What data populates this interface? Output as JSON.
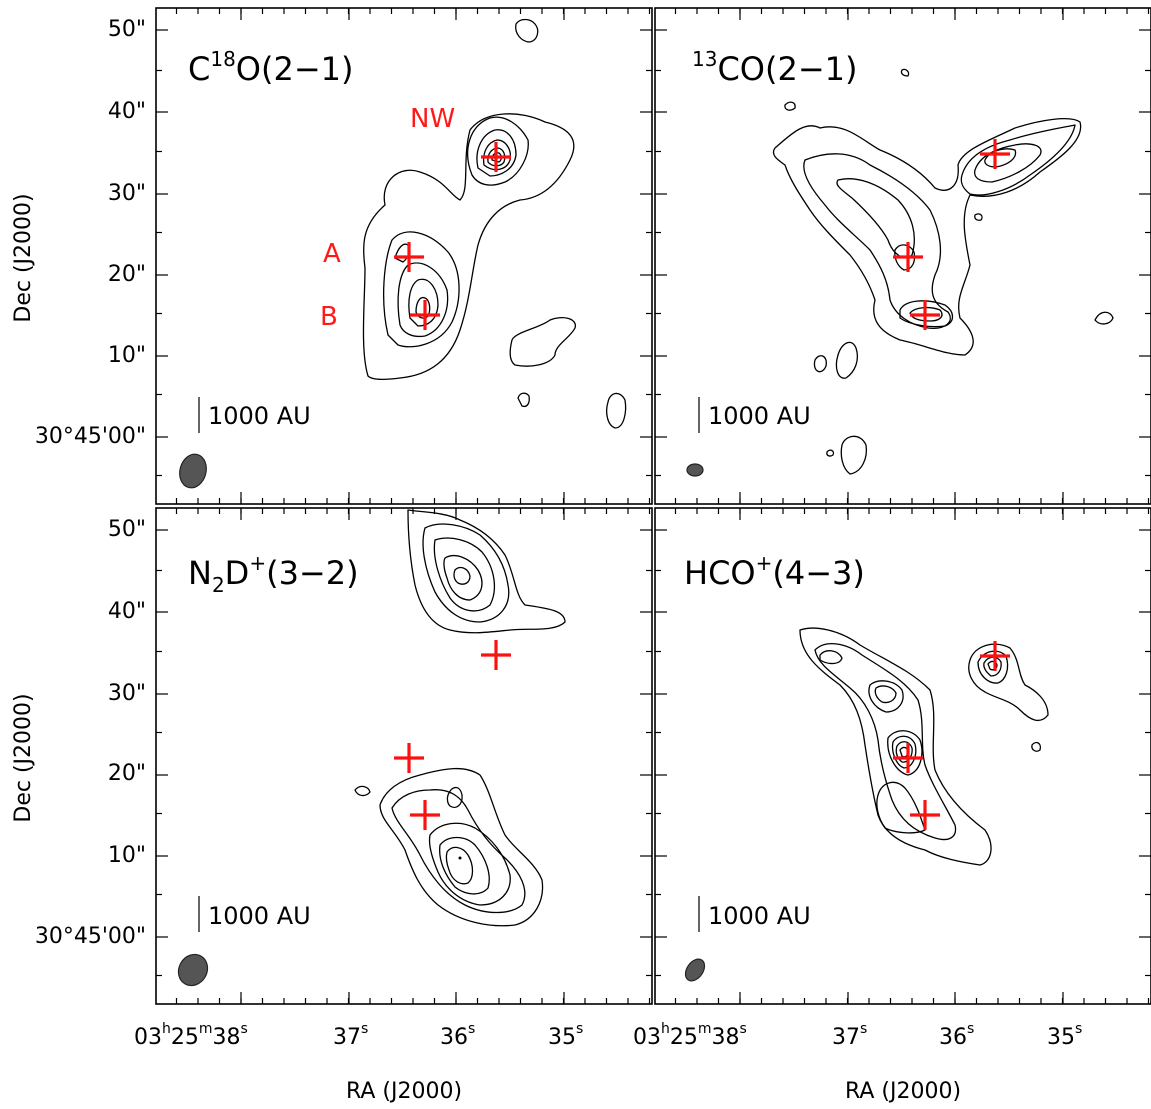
{
  "figure": {
    "x_axis_label": "RA (J2000)",
    "y_axis_label": "Dec (J2000)",
    "scale_bar": "1000 AU",
    "x_tick_labels": [
      "03",
      "h",
      "25",
      "m",
      "38",
      "s",
      "37",
      "s",
      "36",
      "s",
      "35",
      "s"
    ],
    "y_tick_labels": [
      "50\"",
      "40\"",
      "30\"",
      "20\"",
      "10\"",
      "30°45'00\""
    ],
    "colors": {
      "markers": "#ff1a1a",
      "contours": "#000000",
      "beam": "#555555"
    }
  },
  "chart_data": [
    {
      "type": "contour",
      "panel": "top-left",
      "title": {
        "base": "C",
        "sup": "18",
        "rest": "O(2−1)"
      },
      "source_labels": [
        "NW",
        "A",
        "B"
      ],
      "positions_dec_arcsec_offset": {
        "NW": 34,
        "A": 21.5,
        "B": 14.5
      }
    },
    {
      "type": "contour",
      "panel": "top-right",
      "title": {
        "sup": "13",
        "rest": "CO(2−1)"
      }
    },
    {
      "type": "contour",
      "panel": "bottom-left",
      "title": {
        "base": "N",
        "sub": "2",
        "mid": "D",
        "sup": "+",
        "rest": "(3−2)"
      }
    },
    {
      "type": "contour",
      "panel": "bottom-right",
      "title": {
        "base": "HCO",
        "sup": "+",
        "rest": "(4−3)"
      }
    }
  ]
}
